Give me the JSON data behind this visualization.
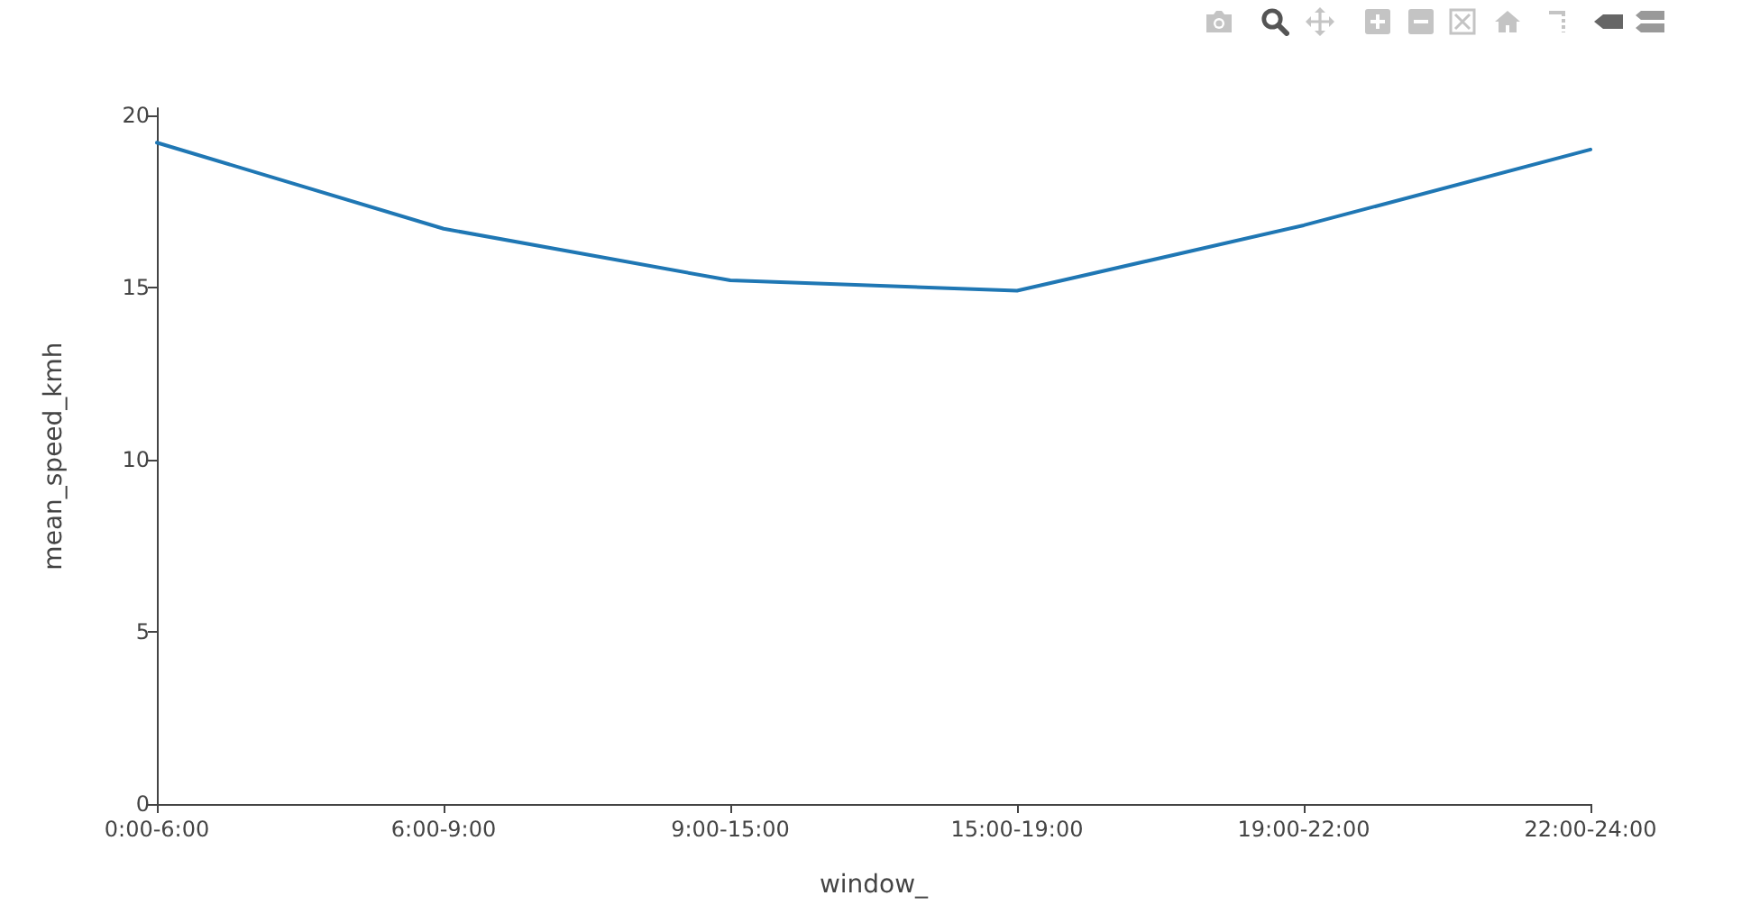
{
  "chart_data": {
    "type": "line",
    "xlabel": "window_",
    "ylabel": "mean_speed_kmh",
    "categories": [
      "0:00-6:00",
      "6:00-9:00",
      "9:00-15:00",
      "15:00-19:00",
      "19:00-22:00",
      "22:00-24:00"
    ],
    "series": [
      {
        "color": "#1f77b4",
        "values": [
          19.2,
          16.7,
          15.2,
          14.9,
          16.8,
          19.0
        ]
      }
    ],
    "ylim": [
      0,
      20.2
    ],
    "yticks": [
      0,
      5,
      10,
      15,
      20
    ],
    "grid": false,
    "marker": "none",
    "line_style": "solid"
  }
}
